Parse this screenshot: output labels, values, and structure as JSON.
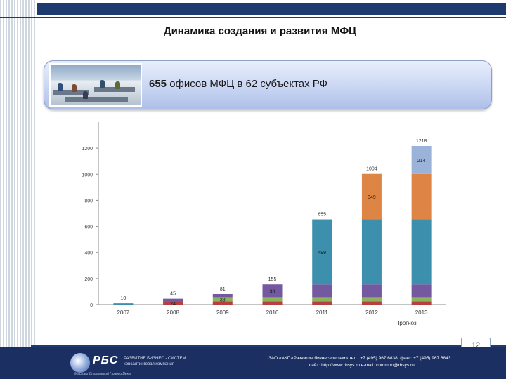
{
  "slide": {
    "title": "Динамика создания и развития МФЦ",
    "banner": {
      "number": "655",
      "text": " офисов МФЦ в 62 субъектах РФ"
    },
    "page_number": "12"
  },
  "footer": {
    "logo_name": "РБС",
    "logo_line1": "РАЗВИТИЕ  БИЗНЕС - СИСТЕМ",
    "logo_line2": "консалтинговая компания",
    "logo_tagline": "Мастер Стратегий Нового Века",
    "contact_line1": "ЗАО «АКГ «Развитие бизнес-систем»  тел.: +7 (495) 967 6838,  факс: +7 (495) 967 6843",
    "contact_line2": "сайт: http://www.rbsys.ru   e-mail: common@rbsys.ru"
  },
  "chart_data": {
    "type": "bar",
    "stacked": true,
    "categories": [
      "2007",
      "2008",
      "2009",
      "2010",
      "2011",
      "2012",
      "2013"
    ],
    "category_note": "Прогноз",
    "ylim": [
      0,
      1400
    ],
    "yticks": [
      0,
      200,
      400,
      600,
      800,
      1000,
      1200
    ],
    "grid": false,
    "series": [
      {
        "color": "#b5403f",
        "values": [
          0,
          24,
          24,
          24,
          24,
          24,
          24
        ]
      },
      {
        "color": "#8db35a",
        "values": [
          0,
          0,
          33,
          33,
          33,
          33,
          33
        ]
      },
      {
        "color": "#7459a0",
        "values": [
          0,
          21,
          24,
          98,
          98,
          98,
          98
        ]
      },
      {
        "color": "#3d8fae",
        "values": [
          10,
          0,
          0,
          0,
          499,
          499,
          499
        ]
      },
      {
        "color": "#de8545",
        "values": [
          0,
          0,
          0,
          0,
          0,
          349,
          349
        ]
      },
      {
        "color": "#9bb3d8",
        "values": [
          0,
          0,
          0,
          0,
          0,
          0,
          214
        ]
      }
    ],
    "totals": [
      "10",
      "45",
      "81",
      "155",
      "655",
      "1004",
      "1218"
    ],
    "segment_labels": [
      {
        "category": 1,
        "series": 0,
        "text": "24"
      },
      {
        "category": 2,
        "series": 1,
        "text": "33"
      },
      {
        "category": 3,
        "series": 2,
        "text": "98"
      },
      {
        "category": 4,
        "series": 3,
        "text": "499"
      },
      {
        "category": 5,
        "series": 4,
        "text": "349"
      },
      {
        "category": 6,
        "series": 5,
        "text": "214"
      }
    ]
  }
}
